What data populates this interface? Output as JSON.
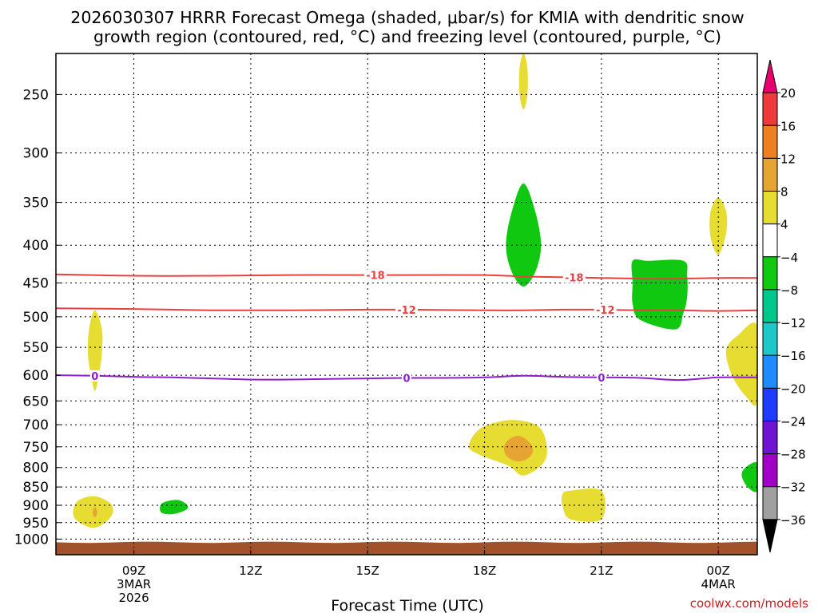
{
  "chart_data": {
    "type": "heatmap",
    "title_lines": [
      "2026030307 HRRR Forecast Omega (shaded, μbar/s) for KMIA with dendritic snow",
      "growth region (contoured, red, °C) and freezing level (contoured, purple, °C)"
    ],
    "xlabel": "Forecast Time (UTC)",
    "credit": "coolwx.com/models",
    "x_range_hours": [
      7,
      25
    ],
    "y_range_hpa": [
      220,
      1050
    ],
    "y_scale": "log-pressure (inverted)",
    "x_ticks": [
      {
        "hour": 9,
        "lines": [
          "09Z",
          "3MAR",
          "2026"
        ]
      },
      {
        "hour": 12,
        "lines": [
          "12Z"
        ]
      },
      {
        "hour": 15,
        "lines": [
          "15Z"
        ]
      },
      {
        "hour": 18,
        "lines": [
          "18Z"
        ]
      },
      {
        "hour": 21,
        "lines": [
          "21Z"
        ]
      },
      {
        "hour": 24,
        "lines": [
          "00Z",
          "4MAR"
        ]
      }
    ],
    "y_ticks": [
      {
        "value": 250,
        "label": "250"
      },
      {
        "value": 300,
        "label": "300"
      },
      {
        "value": 350,
        "label": "350"
      },
      {
        "value": 400,
        "label": "400"
      },
      {
        "value": 450,
        "label": "450"
      },
      {
        "value": 500,
        "label": "500"
      },
      {
        "value": 550,
        "label": "550"
      },
      {
        "value": 600,
        "label": "600"
      },
      {
        "value": 650,
        "label": "650"
      },
      {
        "value": 700,
        "label": "700"
      },
      {
        "value": 750,
        "label": "750"
      },
      {
        "value": 800,
        "label": "800"
      },
      {
        "value": 850,
        "label": "850"
      },
      {
        "value": 900,
        "label": "900"
      },
      {
        "value": 950,
        "label": "950"
      },
      {
        "value": 1000,
        "label": "1000"
      }
    ],
    "grid": true,
    "colorbar": {
      "position": "right",
      "bins": [
        {
          "from": 20,
          "to": null,
          "color": "#e8006e"
        },
        {
          "from": 16,
          "to": 20,
          "color": "#ee3a3a"
        },
        {
          "from": 12,
          "to": 16,
          "color": "#ee7f22"
        },
        {
          "from": 8,
          "to": 12,
          "color": "#e6a532"
        },
        {
          "from": 4,
          "to": 8,
          "color": "#e6dc32"
        },
        {
          "from": -4,
          "to": 4,
          "color": "#ffffff"
        },
        {
          "from": -8,
          "to": -4,
          "color": "#10c810"
        },
        {
          "from": -12,
          "to": -8,
          "color": "#00c88c"
        },
        {
          "from": -16,
          "to": -12,
          "color": "#1ec8c8"
        },
        {
          "from": -20,
          "to": -16,
          "color": "#1e8cff"
        },
        {
          "from": -24,
          "to": -20,
          "color": "#1e3cff"
        },
        {
          "from": -28,
          "to": -24,
          "color": "#6e14d2"
        },
        {
          "from": -32,
          "to": -28,
          "color": "#a000c8"
        },
        {
          "from": -36,
          "to": -32,
          "color": "#a0a0a0"
        },
        {
          "from": null,
          "to": -36,
          "color": "#000000"
        }
      ],
      "tick_labels": [
        "20",
        "16",
        "12",
        "8",
        "4",
        "−4",
        "−8",
        "−12",
        "−16",
        "−20",
        "−24",
        "−28",
        "−32",
        "−36"
      ]
    },
    "shaded_regions": [
      {
        "category": "4-8",
        "color": "#e6dc32",
        "points": [
          [
            19.0,
            220
          ],
          [
            19.1,
            230
          ],
          [
            19.1,
            250
          ],
          [
            19.0,
            262
          ],
          [
            18.9,
            250
          ],
          [
            18.9,
            230
          ]
        ]
      },
      {
        "category": "-8--4",
        "color": "#10c810",
        "points": [
          [
            19.0,
            330
          ],
          [
            19.3,
            360
          ],
          [
            19.45,
            400
          ],
          [
            19.3,
            435
          ],
          [
            19.0,
            455
          ],
          [
            18.7,
            435
          ],
          [
            18.55,
            400
          ],
          [
            18.7,
            360
          ]
        ]
      },
      {
        "category": "-8--4",
        "color": "#10c810",
        "points": [
          [
            21.8,
            420
          ],
          [
            22.2,
            420
          ],
          [
            23.1,
            420
          ],
          [
            23.2,
            440
          ],
          [
            23.2,
            470
          ],
          [
            23.1,
            495
          ],
          [
            22.9,
            520
          ],
          [
            22.0,
            505
          ],
          [
            21.8,
            480
          ],
          [
            21.8,
            450
          ]
        ]
      },
      {
        "category": "4-8",
        "color": "#e6dc32",
        "points": [
          [
            24.0,
            345
          ],
          [
            24.2,
            360
          ],
          [
            24.2,
            385
          ],
          [
            24.0,
            412
          ],
          [
            23.8,
            390
          ],
          [
            23.8,
            360
          ]
        ]
      },
      {
        "category": "4-8",
        "color": "#e6dc32",
        "points": [
          [
            25.0,
            515
          ],
          [
            24.5,
            530
          ],
          [
            24.2,
            555
          ],
          [
            24.35,
            600
          ],
          [
            24.7,
            640
          ],
          [
            25.0,
            650
          ]
        ]
      },
      {
        "category": "4-8",
        "color": "#e6dc32",
        "points": [
          [
            8.0,
            490
          ],
          [
            8.18,
            520
          ],
          [
            8.18,
            560
          ],
          [
            8.1,
            600
          ],
          [
            8.0,
            630
          ],
          [
            7.9,
            600
          ],
          [
            7.82,
            560
          ],
          [
            7.85,
            520
          ]
        ]
      },
      {
        "category": "-8--4",
        "color": "#10c810",
        "points": [
          [
            25.0,
            790
          ],
          [
            24.7,
            800
          ],
          [
            24.6,
            820
          ],
          [
            24.75,
            850
          ],
          [
            25.0,
            860
          ]
        ]
      },
      {
        "category": "4-8",
        "color": "#e6dc32",
        "points": [
          [
            18.8,
            690
          ],
          [
            19.4,
            705
          ],
          [
            19.6,
            750
          ],
          [
            19.5,
            790
          ],
          [
            19.0,
            820
          ],
          [
            18.6,
            795
          ],
          [
            17.9,
            770
          ],
          [
            17.6,
            750
          ],
          [
            17.8,
            715
          ],
          [
            18.2,
            697
          ]
        ]
      },
      {
        "category": "8-12",
        "color": "#e6a532",
        "points": [
          [
            18.9,
            725
          ],
          [
            19.2,
            745
          ],
          [
            19.2,
            770
          ],
          [
            18.9,
            785
          ],
          [
            18.6,
            775
          ],
          [
            18.5,
            755
          ],
          [
            18.6,
            735
          ]
        ]
      },
      {
        "category": "4-8",
        "color": "#e6dc32",
        "points": [
          [
            20.2,
            860
          ],
          [
            21.0,
            860
          ],
          [
            21.0,
            940
          ],
          [
            20.2,
            940
          ],
          [
            20.0,
            900
          ],
          [
            20.0,
            870
          ]
        ]
      },
      {
        "category": "4-8",
        "color": "#e6dc32",
        "points": [
          [
            8.0,
            875
          ],
          [
            8.4,
            895
          ],
          [
            8.45,
            925
          ],
          [
            8.2,
            955
          ],
          [
            7.9,
            965
          ],
          [
            7.5,
            940
          ],
          [
            7.45,
            910
          ],
          [
            7.6,
            885
          ]
        ]
      },
      {
        "category": "8-12",
        "color": "#e6a532",
        "points": [
          [
            8.0,
            905
          ],
          [
            8.06,
            920
          ],
          [
            8.0,
            935
          ],
          [
            7.94,
            920
          ]
        ]
      },
      {
        "category": "-8--4",
        "color": "#10c810",
        "points": [
          [
            10.1,
            885
          ],
          [
            10.35,
            897
          ],
          [
            10.35,
            912
          ],
          [
            10.0,
            925
          ],
          [
            9.7,
            920
          ],
          [
            9.72,
            895
          ]
        ]
      }
    ],
    "contours": [
      {
        "label": "-18",
        "color": "#e84040",
        "points": [
          [
            7,
            438
          ],
          [
            9,
            440
          ],
          [
            11,
            440
          ],
          [
            13,
            439
          ],
          [
            15,
            439
          ],
          [
            16,
            439
          ],
          [
            18,
            439
          ],
          [
            19,
            441
          ],
          [
            20,
            442
          ],
          [
            21,
            443
          ],
          [
            22,
            444
          ],
          [
            23,
            444
          ],
          [
            24,
            443
          ],
          [
            25,
            443
          ]
        ],
        "label_positions": [
          15.2,
          20.3
        ]
      },
      {
        "label": "-12",
        "color": "#e84040",
        "points": [
          [
            7,
            487
          ],
          [
            9,
            488
          ],
          [
            11,
            490
          ],
          [
            13,
            490
          ],
          [
            15,
            489
          ],
          [
            16,
            489
          ],
          [
            18,
            490
          ],
          [
            19,
            490
          ],
          [
            20,
            489
          ],
          [
            21,
            489
          ],
          [
            22,
            490
          ],
          [
            23,
            490
          ],
          [
            24,
            491
          ],
          [
            25,
            490
          ]
        ],
        "label_positions": [
          16.0,
          21.1
        ]
      },
      {
        "label": "0",
        "color": "#8c1ecc",
        "points": [
          [
            7,
            600
          ],
          [
            8,
            601
          ],
          [
            9,
            603
          ],
          [
            10,
            604
          ],
          [
            11,
            606
          ],
          [
            12,
            608
          ],
          [
            13,
            608
          ],
          [
            14,
            607
          ],
          [
            15,
            606
          ],
          [
            16,
            605
          ],
          [
            17,
            605
          ],
          [
            18,
            604
          ],
          [
            19,
            601
          ],
          [
            20,
            603
          ],
          [
            21,
            604
          ],
          [
            22,
            605
          ],
          [
            23,
            609
          ],
          [
            24,
            604
          ],
          [
            25,
            604
          ]
        ],
        "label_positions": [
          8.0,
          16.0,
          21.0
        ]
      }
    ],
    "terrain": {
      "from_hpa": 1010,
      "color": "#a0522d"
    }
  }
}
